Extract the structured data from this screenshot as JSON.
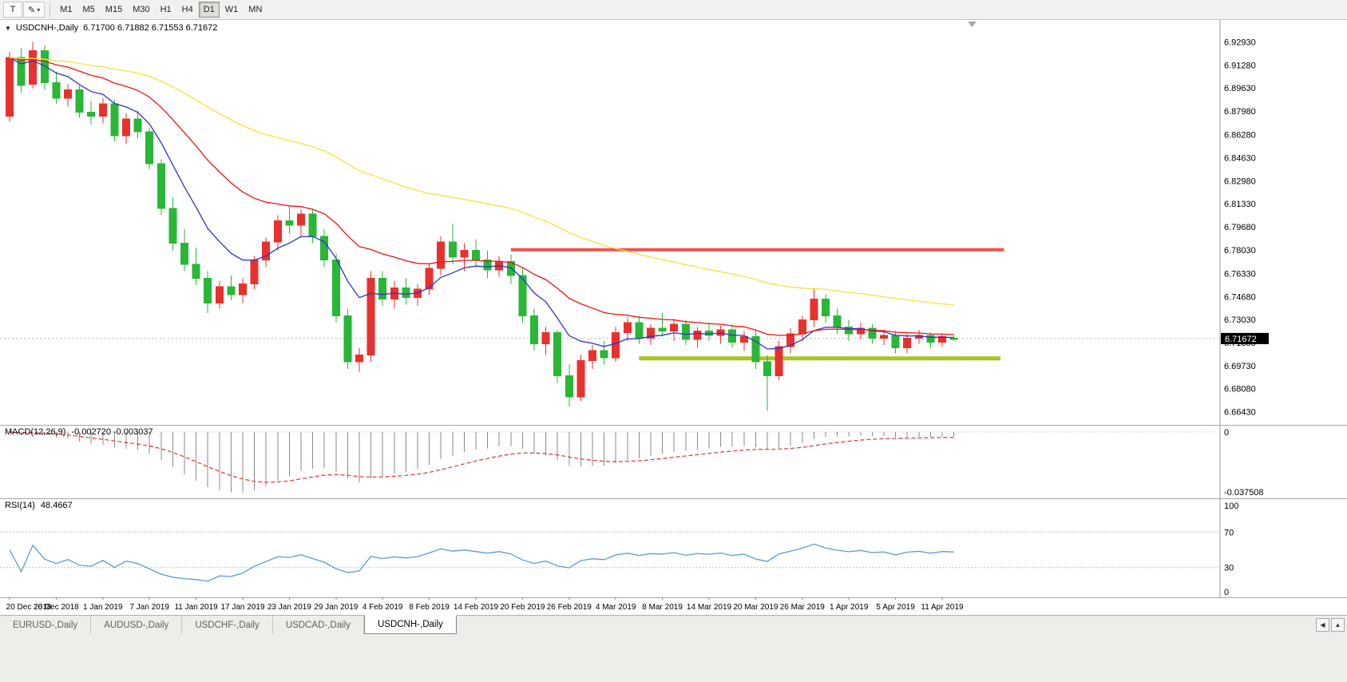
{
  "toolbar": {
    "tool_buttons": [
      {
        "id": "cursor-tool",
        "glyph": "T",
        "has_dropdown": false
      },
      {
        "id": "draw-tool",
        "glyph": "✎",
        "has_dropdown": true
      }
    ],
    "timeframes": [
      "M1",
      "M5",
      "M15",
      "M30",
      "H1",
      "H4",
      "D1",
      "W1",
      "MN"
    ],
    "active_timeframe": "D1"
  },
  "chart_header": {
    "menu_icon": "▼",
    "symbol": "USDCNH-,Daily",
    "ohlc_text": "6.71700 6.71882 6.71553 6.71672"
  },
  "macd": {
    "label": "MACD(12,26,9)",
    "values_text": "-0.002720 -0.003037",
    "axis_zero": "0",
    "axis_min": "-0.037508"
  },
  "rsi": {
    "label": "RSI(14)",
    "value_text": "48.4667",
    "axis_labels": [
      [
        "100",
        100
      ],
      [
        "70",
        70
      ],
      [
        "30",
        30
      ],
      [
        "0",
        0
      ]
    ]
  },
  "tabs": {
    "items": [
      "EURUSD-,Daily",
      "AUDUSD-,Daily",
      "USDCHF-,Daily",
      "USDCAD-,Daily",
      "USDCNH-,Daily"
    ],
    "active": "USDCNH-,Daily",
    "scroll_buttons": [
      "◀",
      "▲"
    ]
  },
  "chart_data": {
    "type": "candlestick",
    "symbol": "USDCNH",
    "timeframe": "Daily",
    "y_range": [
      6.656,
      6.945
    ],
    "y_ticks": [
      "6.92930",
      "6.91280",
      "6.89630",
      "6.87980",
      "6.86280",
      "6.84630",
      "6.82980",
      "6.81330",
      "6.79680",
      "6.78030",
      "6.76330",
      "6.74680",
      "6.73030",
      "6.71380",
      "6.69730",
      "6.68080",
      "6.66430"
    ],
    "current_price": "6.71672",
    "up_color": "#e8312e",
    "down_color": "#28b737",
    "x_labels": [
      "20 Dec 2018",
      "26 Dec 2018",
      "1 Jan 2019",
      "7 Jan 2019",
      "11 Jan 2019",
      "17 Jan 2019",
      "23 Jan 2019",
      "29 Jan 2019",
      "4 Feb 2019",
      "8 Feb 2019",
      "14 Feb 2019",
      "20 Feb 2019",
      "26 Feb 2019",
      "4 Mar 2019",
      "8 Mar 2019",
      "14 Mar 2019",
      "20 Mar 2019",
      "26 Mar 2019",
      "1 Apr 2019",
      "5 Apr 2019",
      "11 Apr 2019"
    ],
    "label_every_n_candles": 4,
    "candles": [
      [
        6.876,
        6.922,
        6.872,
        6.918
      ],
      [
        6.918,
        6.925,
        6.893,
        6.898
      ],
      [
        6.899,
        6.9293,
        6.896,
        6.923
      ],
      [
        6.923,
        6.927,
        6.895,
        6.9
      ],
      [
        6.9,
        6.908,
        6.885,
        6.889
      ],
      [
        6.889,
        6.899,
        6.883,
        6.895
      ],
      [
        6.895,
        6.898,
        6.875,
        6.879
      ],
      [
        6.879,
        6.887,
        6.87,
        6.876
      ],
      [
        6.876,
        6.889,
        6.871,
        6.885
      ],
      [
        6.885,
        6.888,
        6.858,
        6.862
      ],
      [
        6.862,
        6.878,
        6.856,
        6.874
      ],
      [
        6.874,
        6.88,
        6.86,
        6.865
      ],
      [
        6.865,
        6.868,
        6.838,
        6.842
      ],
      [
        6.842,
        6.845,
        6.805,
        6.81
      ],
      [
        6.81,
        6.818,
        6.78,
        6.785
      ],
      [
        6.785,
        6.795,
        6.765,
        6.77
      ],
      [
        6.77,
        6.782,
        6.755,
        6.76
      ],
      [
        6.76,
        6.765,
        6.735,
        6.742
      ],
      [
        6.742,
        6.758,
        6.738,
        6.754
      ],
      [
        6.754,
        6.762,
        6.744,
        6.748
      ],
      [
        6.748,
        6.76,
        6.742,
        6.756
      ],
      [
        6.756,
        6.776,
        6.752,
        6.773
      ],
      [
        6.773,
        6.789,
        6.768,
        6.786
      ],
      [
        6.786,
        6.805,
        6.78,
        6.801
      ],
      [
        6.801,
        6.812,
        6.792,
        6.798
      ],
      [
        6.798,
        6.809,
        6.789,
        6.806
      ],
      [
        6.806,
        6.81,
        6.785,
        6.79
      ],
      [
        6.79,
        6.795,
        6.768,
        6.773
      ],
      [
        6.773,
        6.778,
        6.728,
        6.733
      ],
      [
        6.733,
        6.738,
        6.695,
        6.7
      ],
      [
        6.7,
        6.71,
        6.693,
        6.705
      ],
      [
        6.705,
        6.765,
        6.7,
        6.76
      ],
      [
        6.76,
        6.765,
        6.74,
        6.745
      ],
      [
        6.745,
        6.758,
        6.738,
        6.753
      ],
      [
        6.753,
        6.76,
        6.741,
        6.746
      ],
      [
        6.746,
        6.756,
        6.74,
        6.752
      ],
      [
        6.752,
        6.77,
        6.748,
        6.767
      ],
      [
        6.767,
        6.79,
        6.762,
        6.786
      ],
      [
        6.786,
        6.799,
        6.77,
        6.775
      ],
      [
        6.775,
        6.785,
        6.765,
        6.78
      ],
      [
        6.78,
        6.788,
        6.768,
        6.773
      ],
      [
        6.773,
        6.78,
        6.76,
        6.766
      ],
      [
        6.766,
        6.776,
        6.761,
        6.772
      ],
      [
        6.772,
        6.777,
        6.756,
        6.762
      ],
      [
        6.762,
        6.768,
        6.728,
        6.733
      ],
      [
        6.733,
        6.738,
        6.708,
        6.713
      ],
      [
        6.713,
        6.725,
        6.705,
        6.721
      ],
      [
        6.721,
        6.723,
        6.685,
        6.69
      ],
      [
        6.69,
        6.698,
        6.668,
        6.675
      ],
      [
        6.675,
        6.705,
        6.672,
        6.701
      ],
      [
        6.701,
        6.712,
        6.695,
        6.708
      ],
      [
        6.708,
        6.715,
        6.698,
        6.703
      ],
      [
        6.703,
        6.725,
        6.7,
        6.721
      ],
      [
        6.721,
        6.732,
        6.715,
        6.728
      ],
      [
        6.728,
        6.733,
        6.713,
        6.717
      ],
      [
        6.717,
        6.727,
        6.712,
        6.724
      ],
      [
        6.724,
        6.735,
        6.718,
        6.722
      ],
      [
        6.722,
        6.731,
        6.715,
        6.727
      ],
      [
        6.727,
        6.73,
        6.712,
        6.716
      ],
      [
        6.716,
        6.725,
        6.71,
        6.722
      ],
      [
        6.722,
        6.728,
        6.715,
        6.719
      ],
      [
        6.719,
        6.726,
        6.713,
        6.723
      ],
      [
        6.723,
        6.727,
        6.71,
        6.714
      ],
      [
        6.714,
        6.722,
        6.708,
        6.718
      ],
      [
        6.718,
        6.723,
        6.695,
        6.7
      ],
      [
        6.7,
        6.705,
        6.665,
        6.69
      ],
      [
        6.69,
        6.715,
        6.687,
        6.711
      ],
      [
        6.711,
        6.724,
        6.706,
        6.72
      ],
      [
        6.72,
        6.733,
        6.715,
        6.73
      ],
      [
        6.73,
        6.752,
        6.725,
        6.745
      ],
      [
        6.745,
        6.748,
        6.728,
        6.733
      ],
      [
        6.733,
        6.738,
        6.72,
        6.725
      ],
      [
        6.725,
        6.73,
        6.715,
        6.72
      ],
      [
        6.72,
        6.728,
        6.716,
        6.724
      ],
      [
        6.724,
        6.727,
        6.713,
        6.717
      ],
      [
        6.717,
        6.723,
        6.712,
        6.719
      ],
      [
        6.719,
        6.722,
        6.706,
        6.71
      ],
      [
        6.71,
        6.72,
        6.706,
        6.717
      ],
      [
        6.717,
        6.723,
        6.713,
        6.719
      ],
      [
        6.719,
        6.721,
        6.71,
        6.714
      ],
      [
        6.714,
        6.72,
        6.711,
        6.718
      ],
      [
        6.717,
        6.71882,
        6.71553,
        6.71672
      ]
    ],
    "moving_averages": [
      {
        "name": "fast-ma",
        "period": 8,
        "color": "#2d35c8"
      },
      {
        "name": "mid-ma",
        "period": 21,
        "color": "#f01414"
      },
      {
        "name": "slow-ma",
        "period": 55,
        "color": "#f2e43e"
      }
    ],
    "hlines": [
      {
        "name": "resistance-line",
        "price": 6.7803,
        "color": "#ef5350",
        "width": 4,
        "from_index": 43,
        "to_index": 85.3
      },
      {
        "name": "support-line",
        "price": 6.7025,
        "color": "#a8c620",
        "width": 5,
        "from_index": 54,
        "to_index": 85
      }
    ],
    "indicators": {
      "macd": {
        "params": [
          12,
          26,
          9
        ],
        "macd_current": -0.00272,
        "signal_current": -0.003037,
        "axis_min": -0.037508,
        "histogram_color": "#8a8a8a",
        "signal_color": "#e03535"
      },
      "rsi": {
        "period": 14,
        "current": 48.4667,
        "levels": [
          30,
          70
        ],
        "line_color": "#5b9bd5"
      }
    }
  }
}
